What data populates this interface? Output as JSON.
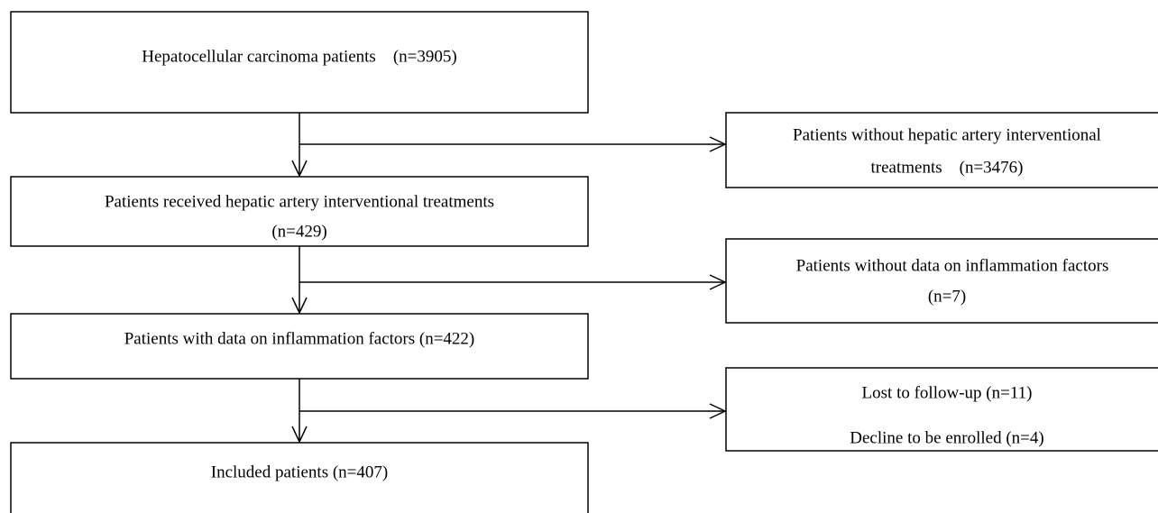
{
  "nodes": [
    {
      "lines": [
        "Hepatocellular carcinoma patients    (n=3905)"
      ]
    },
    {
      "lines": [
        "Patients without hepatic artery interventional",
        "treatments    (n=3476)"
      ]
    },
    {
      "lines": [
        "Patients received hepatic artery interventional treatments",
        "(n=429)"
      ]
    },
    {
      "lines": [
        "Patients without data on inflammation factors",
        "(n=7)"
      ]
    },
    {
      "lines": [
        "Patients with data on inflammation factors (n=422)"
      ]
    },
    {
      "lines": [
        "Lost to follow-up (n=11)",
        "Decline to be enrolled (n=4)"
      ]
    },
    {
      "lines": [
        "Included patients (n=407)"
      ]
    }
  ]
}
